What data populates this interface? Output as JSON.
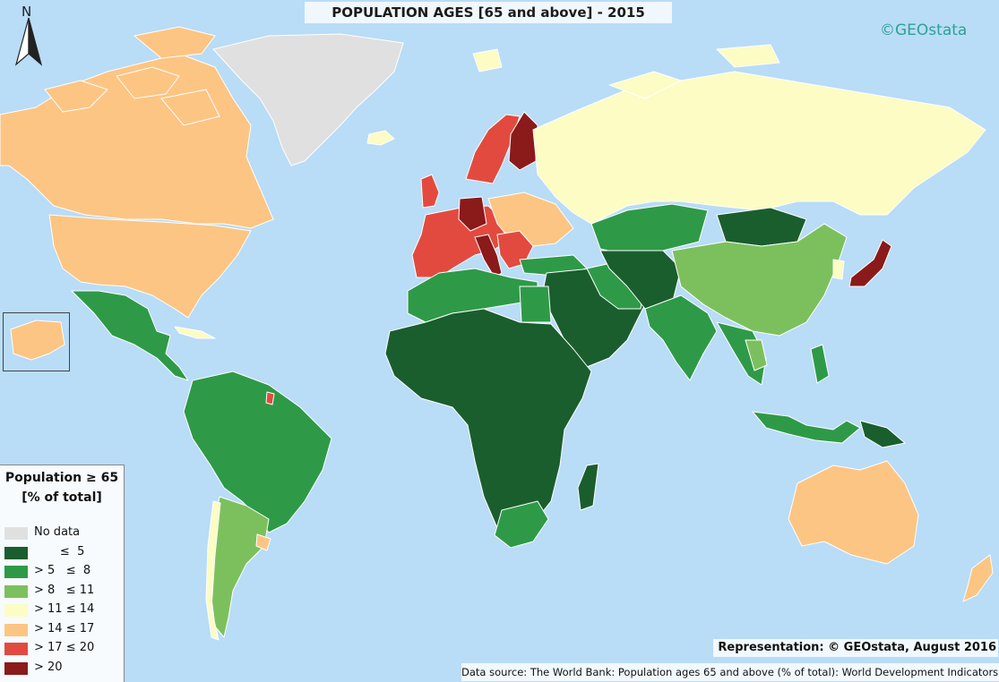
{
  "title": "POPULATION AGES [65 and above] - 2015",
  "brand": "©GEOstata",
  "north_label": "N",
  "legend": {
    "title_line1": "Population ≥ 65",
    "title_line2": "[% of total]",
    "items": [
      {
        "label": "No data",
        "color": "#e0e0e0"
      },
      {
        "label": "       ≤  5",
        "color": "#1a5e2e"
      },
      {
        "label": "> 5   ≤  8",
        "color": "#2e9a47"
      },
      {
        "label": "> 8   ≤ 11",
        "color": "#7cc05e"
      },
      {
        "label": "> 11 ≤ 14",
        "color": "#fcfcc4"
      },
      {
        "label": "> 14 ≤ 17",
        "color": "#fdc583"
      },
      {
        "label": "> 17 ≤ 20",
        "color": "#e34a3f"
      },
      {
        "label": "> 20",
        "color": "#8b1a1a"
      }
    ]
  },
  "representation": "Representation:   © GEOstata, August 2016",
  "source": "Data source: The World Bank: Population ages 65 and above (% of total): World Development Indicators",
  "colors": {
    "ocean": "#b9dcf7",
    "no_data": "#e0e0e0",
    "le5": "#1a5e2e",
    "le8": "#2e9a47",
    "le11": "#7cc05e",
    "le14": "#fcfcc4",
    "le17": "#fdc583",
    "le20": "#e34a3f",
    "gt20": "#8b1a1a"
  }
}
